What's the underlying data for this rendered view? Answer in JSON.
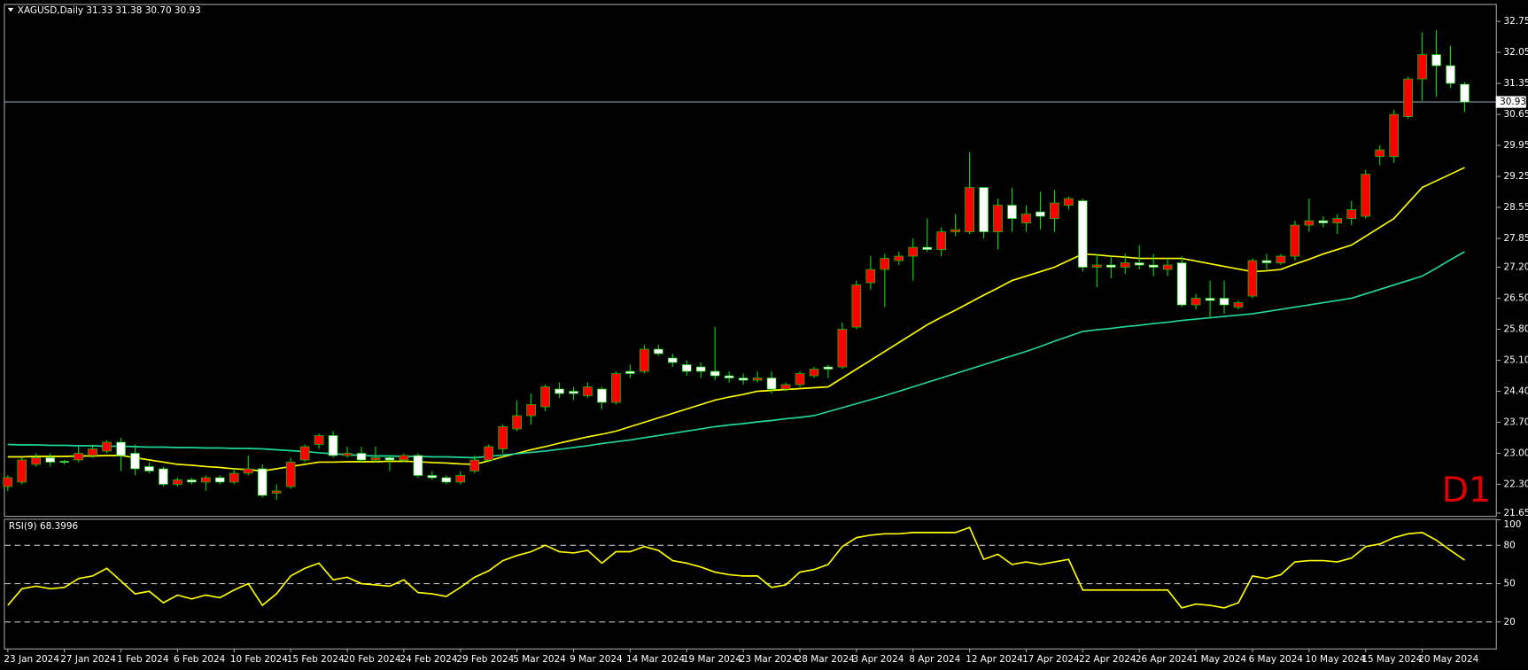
{
  "chart_data": [
    {
      "type": "candlestick",
      "title": "XAGUSD,Daily  31.33 31.38 30.70 30.93",
      "watermark": "D1",
      "categories": [
        "23 Jan 2024",
        null,
        null,
        null,
        "27 Jan 2024",
        null,
        null,
        null,
        "1 Feb 2024",
        null,
        null,
        null,
        "6 Feb 2024",
        null,
        null,
        null,
        "10 Feb 2024",
        null,
        null,
        null,
        "15 Feb 2024",
        null,
        null,
        null,
        "20 Feb 2024",
        null,
        null,
        null,
        "24 Feb 2024",
        null,
        null,
        null,
        "29 Feb 2024",
        null,
        null,
        null,
        "5 Mar 2024",
        null,
        null,
        null,
        "9 Mar 2024",
        null,
        null,
        null,
        "14 Mar 2024",
        null,
        null,
        null,
        "19 Mar 2024",
        null,
        null,
        null,
        "23 Mar 2024",
        null,
        null,
        null,
        "28 Mar 2024",
        null,
        null,
        null,
        "3 Apr 2024",
        null,
        null,
        null,
        "8 Apr 2024",
        null,
        null,
        null,
        "12 Apr 2024",
        null,
        null,
        null,
        "17 Apr 2024",
        null,
        null,
        null,
        "22 Apr 2024",
        null,
        null,
        null,
        "26 Apr 2024",
        null,
        null,
        null,
        "1 May 2024",
        null,
        null,
        null,
        "6 May 2024",
        null,
        null,
        null,
        "10 May 2024",
        null,
        null,
        null,
        "15 May 2024",
        null,
        null,
        null,
        "20 May 2024",
        null,
        null,
        null
      ],
      "open": [
        22.25,
        22.35,
        22.75,
        22.9,
        22.82,
        22.85,
        22.95,
        23.05,
        23.25,
        23.0,
        22.7,
        22.65,
        22.3,
        22.4,
        22.35,
        22.45,
        22.35,
        22.55,
        22.65,
        22.1,
        22.25,
        22.85,
        23.2,
        23.4,
        22.95,
        23.0,
        22.85,
        22.9,
        22.85,
        22.95,
        22.5,
        22.45,
        22.35,
        22.6,
        22.85,
        23.1,
        23.55,
        23.85,
        24.05,
        24.45,
        24.4,
        24.3,
        24.45,
        24.15,
        24.85,
        24.85,
        25.35,
        25.15,
        25.0,
        24.95,
        24.85,
        24.75,
        24.7,
        24.65,
        24.7,
        24.45,
        24.55,
        24.75,
        24.95,
        24.95,
        25.85,
        26.85,
        27.15,
        27.35,
        27.45,
        27.65,
        27.6,
        28.0,
        28.0,
        29.0,
        28.0,
        28.6,
        28.2,
        28.45,
        28.3,
        28.6,
        28.7,
        27.2,
        27.25,
        27.2,
        27.3,
        27.25,
        27.15,
        27.3,
        26.35,
        26.5,
        26.5,
        26.3,
        26.55,
        27.35,
        27.3,
        27.45,
        28.15,
        28.25,
        28.2,
        28.3,
        28.35,
        29.7,
        29.7,
        30.6,
        31.45,
        32.0,
        31.75,
        31.33
      ],
      "high": [
        22.5,
        22.9,
        23.0,
        23.0,
        22.85,
        23.15,
        23.2,
        23.3,
        23.35,
        23.2,
        22.8,
        22.7,
        22.45,
        22.45,
        22.5,
        22.5,
        22.65,
        22.95,
        22.75,
        22.3,
        22.9,
        23.2,
        23.45,
        23.5,
        23.15,
        23.15,
        23.15,
        22.95,
        23.0,
        23.0,
        22.6,
        22.5,
        22.6,
        22.95,
        23.2,
        23.65,
        24.2,
        24.35,
        24.55,
        24.6,
        24.5,
        24.6,
        24.5,
        24.85,
        25.0,
        25.45,
        25.45,
        25.25,
        25.1,
        25.05,
        25.85,
        24.85,
        24.8,
        24.85,
        24.85,
        24.6,
        24.85,
        24.95,
        25.0,
        25.95,
        26.9,
        27.45,
        27.5,
        27.55,
        27.85,
        28.3,
        28.1,
        28.4,
        29.8,
        29.0,
        28.75,
        29.0,
        28.6,
        28.9,
        28.95,
        28.8,
        28.75,
        27.5,
        27.45,
        27.5,
        27.7,
        27.5,
        27.4,
        27.45,
        26.6,
        26.9,
        26.9,
        26.45,
        27.4,
        27.5,
        27.5,
        28.25,
        28.75,
        28.35,
        28.4,
        28.7,
        29.4,
        29.95,
        30.75,
        31.5,
        32.5,
        32.55,
        32.2,
        31.38
      ],
      "low": [
        22.15,
        22.3,
        22.7,
        22.7,
        22.75,
        22.8,
        22.9,
        23.0,
        22.6,
        22.5,
        22.55,
        22.25,
        22.25,
        22.3,
        22.15,
        22.3,
        22.3,
        22.5,
        22.0,
        21.95,
        22.2,
        22.8,
        23.1,
        22.9,
        22.9,
        22.8,
        22.8,
        22.6,
        22.8,
        22.45,
        22.4,
        22.3,
        22.3,
        22.55,
        22.8,
        23.0,
        23.5,
        23.65,
        23.95,
        24.25,
        24.2,
        24.25,
        24.0,
        24.1,
        24.7,
        24.8,
        25.2,
        24.95,
        24.75,
        24.7,
        24.65,
        24.6,
        24.55,
        24.6,
        24.35,
        24.4,
        24.5,
        24.7,
        24.7,
        24.9,
        25.8,
        26.7,
        26.3,
        27.25,
        26.9,
        27.55,
        27.45,
        27.9,
        27.95,
        27.85,
        27.6,
        28.0,
        28.0,
        28.05,
        28.0,
        28.5,
        27.1,
        26.75,
        26.95,
        27.05,
        27.15,
        27.0,
        27.0,
        26.3,
        26.25,
        26.05,
        26.15,
        26.25,
        26.5,
        27.15,
        27.25,
        27.35,
        28.0,
        28.1,
        27.95,
        28.15,
        28.3,
        29.5,
        29.55,
        30.55,
        30.95,
        31.05,
        31.25,
        30.7
      ],
      "close": [
        22.45,
        22.85,
        22.9,
        22.8,
        22.8,
        23.0,
        23.1,
        23.25,
        22.95,
        22.65,
        22.6,
        22.3,
        22.4,
        22.35,
        22.45,
        22.35,
        22.55,
        22.65,
        22.05,
        22.15,
        22.8,
        23.15,
        23.4,
        22.95,
        23.0,
        22.85,
        22.9,
        22.85,
        22.95,
        22.5,
        22.45,
        22.35,
        22.5,
        22.85,
        23.15,
        23.6,
        23.85,
        24.1,
        24.5,
        24.35,
        24.35,
        24.5,
        24.15,
        24.8,
        24.8,
        25.35,
        25.25,
        25.05,
        24.85,
        24.85,
        24.75,
        24.7,
        24.65,
        24.7,
        24.45,
        24.55,
        24.8,
        24.9,
        24.9,
        25.8,
        26.8,
        27.15,
        27.4,
        27.45,
        27.65,
        27.6,
        28.0,
        28.05,
        29.0,
        28.0,
        28.6,
        28.3,
        28.4,
        28.35,
        28.65,
        28.75,
        27.2,
        27.25,
        27.2,
        27.3,
        27.25,
        27.2,
        27.25,
        26.35,
        26.5,
        26.45,
        26.35,
        26.4,
        27.35,
        27.3,
        27.45,
        28.15,
        28.25,
        28.2,
        28.3,
        28.5,
        29.3,
        29.85,
        30.65,
        31.45,
        32.0,
        31.75,
        31.35,
        30.93
      ],
      "up_color": "#ff0000",
      "down_color": "#ffffff",
      "wick_color": "#00e000",
      "lines": [
        {
          "color": "#ffff00",
          "values": [
            22.92,
            22.92,
            22.93,
            22.93,
            22.93,
            22.94,
            22.94,
            22.95,
            22.95,
            22.9,
            22.85,
            22.8,
            22.75,
            22.73,
            22.7,
            22.68,
            22.65,
            22.63,
            22.6,
            22.65,
            22.7,
            22.75,
            22.8,
            22.8,
            22.81,
            22.81,
            22.81,
            22.82,
            22.82,
            22.81,
            22.79,
            22.78,
            22.76,
            22.75,
            22.83,
            22.92,
            23.0,
            23.08,
            23.15,
            23.23,
            23.3,
            23.37,
            23.43,
            23.5,
            23.6,
            23.7,
            23.8,
            23.9,
            24.0,
            24.1,
            24.2,
            24.27,
            24.33,
            24.4,
            24.42,
            24.44,
            24.46,
            24.48,
            24.5,
            24.7,
            24.9,
            25.1,
            25.3,
            25.5,
            25.7,
            25.9,
            26.07,
            26.23,
            26.4,
            26.57,
            26.73,
            26.9,
            27.0,
            27.1,
            27.2,
            27.35,
            27.5,
            27.48,
            27.45,
            27.43,
            27.4,
            27.4,
            27.4,
            27.4,
            27.34,
            27.28,
            27.22,
            27.16,
            27.1,
            27.12,
            27.15,
            27.27,
            27.38,
            27.5,
            27.6,
            27.7,
            27.9,
            28.1,
            28.3,
            28.65,
            29.0,
            29.15,
            29.3,
            29.45
          ]
        },
        {
          "color": "#20d8a0",
          "values": [
            23.2,
            23.19,
            23.19,
            23.18,
            23.18,
            23.17,
            23.17,
            23.16,
            23.16,
            23.15,
            23.14,
            23.14,
            23.13,
            23.13,
            23.12,
            23.12,
            23.11,
            23.11,
            23.1,
            23.08,
            23.06,
            23.04,
            23.01,
            22.99,
            22.97,
            22.95,
            22.94,
            22.94,
            22.93,
            22.93,
            22.92,
            22.92,
            22.91,
            22.9,
            22.93,
            22.96,
            22.99,
            23.02,
            23.05,
            23.09,
            23.13,
            23.17,
            23.22,
            23.26,
            23.3,
            23.35,
            23.4,
            23.45,
            23.5,
            23.55,
            23.6,
            23.64,
            23.67,
            23.71,
            23.74,
            23.78,
            23.81,
            23.85,
            23.94,
            24.03,
            24.12,
            24.21,
            24.3,
            24.4,
            24.5,
            24.6,
            24.7,
            24.8,
            24.9,
            25.0,
            25.1,
            25.2,
            25.3,
            25.41,
            25.53,
            25.64,
            25.75,
            25.79,
            25.82,
            25.86,
            25.89,
            25.93,
            25.96,
            26.0,
            26.03,
            26.06,
            26.09,
            26.12,
            26.15,
            26.2,
            26.25,
            26.3,
            26.35,
            26.4,
            26.45,
            26.5,
            26.6,
            26.7,
            26.8,
            26.9,
            27.0,
            27.18,
            27.37,
            27.55
          ]
        }
      ],
      "price_line": 30.93,
      "ylim": [
        21.61,
        33.12
      ],
      "yticks": [
        32.75,
        32.05,
        31.35,
        30.65,
        29.95,
        29.25,
        28.55,
        27.85,
        {
          "value": 27.2,
          "label": "27.20"
        },
        {
          "value": 26.5,
          "label": "26.50"
        },
        {
          "value": 25.8,
          "label": "25.80"
        },
        {
          "value": 25.1,
          "label": "25.10"
        },
        {
          "value": 24.4,
          "label": "24.40"
        },
        {
          "value": 23.7,
          "label": "23.70"
        },
        {
          "value": 23.0,
          "label": "23.00"
        },
        {
          "value": 22.3,
          "label": "22.30"
        },
        21.65
      ]
    },
    {
      "type": "line",
      "title": "RSI(9) 68.3996",
      "color": "#ffff00",
      "values": [
        33,
        46,
        48,
        46,
        47,
        54,
        56,
        62,
        52,
        42,
        44,
        35,
        41,
        38,
        41,
        39,
        45,
        50,
        33,
        42,
        56,
        62,
        66,
        53,
        55,
        50,
        49,
        48,
        53,
        43,
        42,
        40,
        47,
        55,
        60,
        68,
        72,
        75,
        80,
        75,
        74,
        76,
        66,
        75,
        75,
        79,
        76,
        68,
        66,
        63,
        59,
        57,
        56,
        56,
        47,
        49,
        59,
        61,
        65,
        79,
        86,
        88,
        89,
        89,
        90,
        90,
        90,
        90,
        94,
        69,
        73,
        65,
        67,
        65,
        67,
        69,
        45,
        45,
        45,
        45,
        45,
        45,
        45,
        31,
        34,
        33,
        31,
        35,
        56,
        54,
        57,
        67,
        68,
        68,
        67,
        70,
        79,
        81,
        86,
        89,
        90,
        84,
        76,
        68.3996
      ],
      "ylim": [
        0,
        100
      ],
      "yticks": [
        20,
        50,
        80,
        100
      ],
      "levels": [
        20,
        50,
        80
      ]
    }
  ]
}
